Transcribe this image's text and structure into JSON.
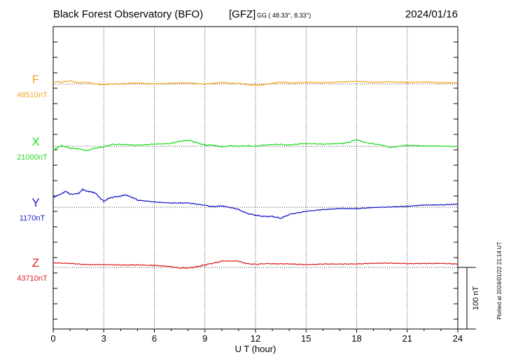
{
  "header": {
    "title": "Black Forest Observatory (BFO)",
    "institute": "[GFZ]",
    "coords": "GG ( 48.33°,   8.33°)",
    "date": "2024/01/16"
  },
  "footer": {
    "plotted": "Plotted at 2024/01/22 21:14 UT",
    "scale_label": "100 nT"
  },
  "chart_data": {
    "type": "line",
    "xlabel": "U T (hour)",
    "xlim": [
      0,
      24
    ],
    "xticks": [
      "0",
      "3",
      "6",
      "9",
      "12",
      "15",
      "18",
      "21",
      "24"
    ],
    "scale_bar_nT": 100,
    "grid": true,
    "series": [
      {
        "name": "F",
        "baseline_label": "48510nT",
        "baseline": 48510,
        "color": "#f5a623",
        "x": [
          0,
          0.5,
          1,
          1.5,
          2,
          2.5,
          3,
          3.5,
          4,
          5,
          6,
          7,
          8,
          9,
          10,
          11,
          11.5,
          12,
          12.5,
          13,
          13.5,
          14,
          15,
          16,
          17,
          18,
          19,
          20,
          21,
          22,
          23,
          24
        ],
        "values": [
          48514,
          48513,
          48515,
          48512,
          48513,
          48510,
          48509,
          48510,
          48510,
          48511,
          48510,
          48511,
          48512,
          48510,
          48513,
          48511,
          48509,
          48508,
          48509,
          48511,
          48513,
          48512,
          48513,
          48512,
          48513,
          48514,
          48512,
          48513,
          48512,
          48513,
          48512,
          48512
        ]
      },
      {
        "name": "X",
        "baseline_label": "21000nT",
        "baseline": 21000,
        "color": "#22dd22",
        "x": [
          0,
          0.25,
          0.5,
          1,
          1.5,
          2,
          2.5,
          3,
          3.5,
          4,
          5,
          6,
          7,
          7.5,
          8,
          8.5,
          9,
          9.5,
          10,
          10.5,
          11,
          11.5,
          12,
          12.5,
          13,
          13.5,
          14,
          15,
          16,
          17,
          17.5,
          18,
          18.5,
          19,
          19.5,
          20,
          21,
          22,
          23,
          24
        ],
        "values": [
          20994,
          20998,
          21001,
          20997,
          20996,
          20993,
          20997,
          20999,
          21003,
          21003,
          21002,
          21004,
          21005,
          21008,
          21010,
          21006,
          21002,
          21002,
          20999,
          21001,
          21000,
          21001,
          21000,
          21002,
          21003,
          21003,
          21002,
          21004,
          21003,
          21004,
          21006,
          21011,
          21006,
          21004,
          21002,
          20998,
          21002,
          21001,
          21001,
          21000
        ]
      },
      {
        "name": "Y",
        "baseline_label": "1170nT",
        "baseline": 1170,
        "color": "#1a1acc",
        "x": [
          0,
          0.5,
          0.75,
          1,
          1.5,
          1.75,
          2,
          2.25,
          2.5,
          3,
          3.25,
          3.5,
          4,
          4.25,
          4.5,
          5,
          6,
          7,
          8,
          9,
          9.5,
          10,
          11,
          11.5,
          12,
          12.5,
          13,
          13.5,
          14,
          15,
          16,
          17,
          18,
          19,
          20,
          21,
          22,
          23,
          24
        ],
        "values": [
          1186,
          1192,
          1196,
          1191,
          1192,
          1199,
          1196,
          1195,
          1193,
          1179,
          1184,
          1186,
          1188,
          1190,
          1188,
          1182,
          1179,
          1177,
          1177,
          1173,
          1171,
          1172,
          1166,
          1160,
          1157,
          1155,
          1155,
          1152,
          1158,
          1163,
          1166,
          1168,
          1168,
          1170,
          1171,
          1172,
          1174,
          1174,
          1175
        ]
      },
      {
        "name": "Z",
        "baseline_label": "43710nT",
        "baseline": 43710,
        "color": "#e02020",
        "x": [
          0,
          1,
          2,
          3,
          4,
          5,
          6,
          7,
          7.5,
          8,
          8.5,
          9,
          9.5,
          10,
          11,
          11.5,
          12,
          12.5,
          13,
          14,
          15,
          16,
          17,
          18,
          19,
          20,
          21,
          22,
          23,
          24
        ],
        "values": [
          43718,
          43717,
          43715,
          43715,
          43714,
          43714,
          43713,
          43711,
          43709,
          43709,
          43711,
          43714,
          43717,
          43720,
          43720,
          43716,
          43715,
          43716,
          43716,
          43716,
          43715,
          43716,
          43716,
          43716,
          43717,
          43717,
          43716,
          43716,
          43716,
          43715
        ]
      }
    ]
  }
}
